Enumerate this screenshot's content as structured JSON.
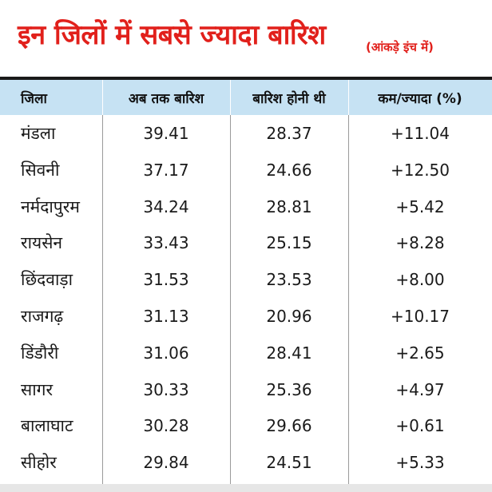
{
  "title": "इन जिलों में सबसे ज्यादा बारिश",
  "unit_note": "(आंकड़े इंच में)",
  "colors": {
    "title": "#e1201b",
    "header_bg": "#c6e2f3",
    "rule": "#1a1a1a",
    "grid": "#9a9a9a"
  },
  "chart_data": {
    "type": "table",
    "columns": [
      "जिला",
      "अब तक बारिश",
      "बारिश होनी थी",
      "कम/ज्यादा (%)"
    ],
    "rows": [
      [
        "मंडला",
        "39.41",
        "28.37",
        "+11.04"
      ],
      [
        "सिवनी",
        "37.17",
        "24.66",
        "+12.50"
      ],
      [
        "नर्मदापुरम",
        "34.24",
        "28.81",
        "+5.42"
      ],
      [
        "रायसेन",
        "33.43",
        "25.15",
        "+8.28"
      ],
      [
        "छिंदवाड़ा",
        "31.53",
        "23.53",
        "+8.00"
      ],
      [
        "राजगढ़",
        "31.13",
        "20.96",
        "+10.17"
      ],
      [
        "डिंडौरी",
        "31.06",
        "28.41",
        "+2.65"
      ],
      [
        "सागर",
        "30.33",
        "25.36",
        "+4.97"
      ],
      [
        "बालाघाट",
        "30.28",
        "29.66",
        "+0.61"
      ],
      [
        "सीहोर",
        "29.84",
        "24.51",
        "+5.33"
      ]
    ]
  }
}
